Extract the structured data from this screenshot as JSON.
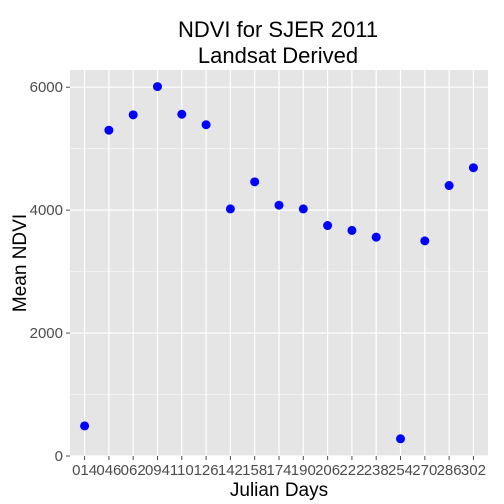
{
  "chart_data": {
    "type": "scatter",
    "title_lines": [
      "NDVI for SJER 2011",
      "Landsat Derived"
    ],
    "xlabel": "Julian Days",
    "ylabel": "Mean NDVI",
    "categories": [
      "014",
      "046",
      "062",
      "094",
      "110",
      "126",
      "142",
      "158",
      "174",
      "190",
      "206",
      "222",
      "238",
      "254",
      "270",
      "286",
      "302"
    ],
    "values": [
      490,
      5300,
      5550,
      6010,
      5560,
      5390,
      4020,
      4460,
      4080,
      4020,
      3750,
      3670,
      3560,
      280,
      3500,
      4400,
      4690
    ],
    "y_ticks": [
      0,
      2000,
      4000,
      6000
    ],
    "y_tick_labels": [
      "0",
      "2000",
      "4000",
      "6000"
    ],
    "ylim": [
      0,
      6280
    ],
    "grid": true,
    "colors": {
      "panel": "#e5e5e5",
      "grid": "#ffffff",
      "point": "#0000ff"
    }
  }
}
